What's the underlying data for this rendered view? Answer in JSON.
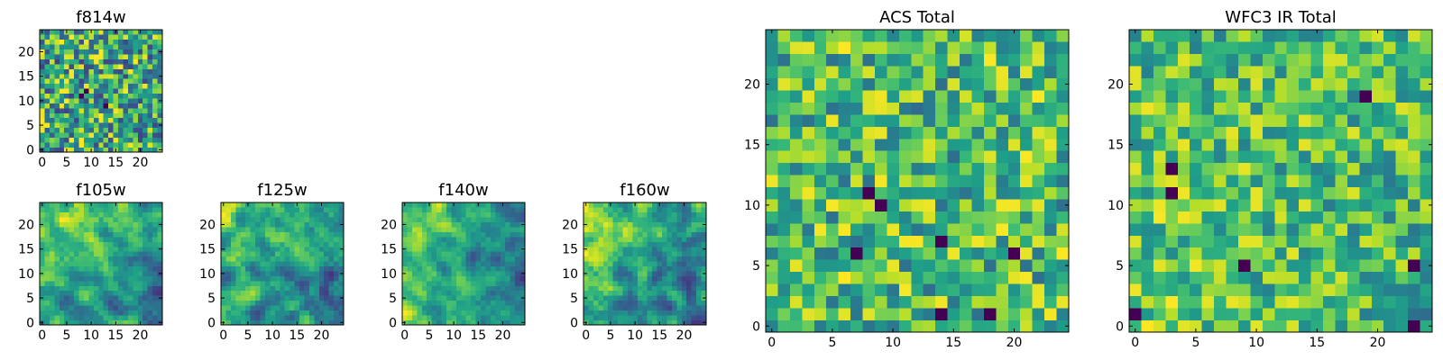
{
  "chart_data": [
    {
      "type": "heatmap",
      "title": "f814w",
      "grid": [
        25,
        25
      ],
      "xlim": [
        -0.5,
        24.5
      ],
      "ylim": [
        -0.5,
        24.5
      ],
      "xticks": [
        0,
        5,
        10,
        15,
        20
      ],
      "yticks": [
        0,
        5,
        10,
        15,
        20
      ],
      "colormap": "viridis",
      "texture": "fine noise",
      "seed": 814,
      "bias": {
        "dark_spots": [
          [
            8,
            11
          ],
          [
            9,
            12
          ],
          [
            13,
            9
          ]
        ]
      }
    },
    {
      "type": "heatmap",
      "title": "f105w",
      "grid": [
        25,
        25
      ],
      "xlim": [
        -0.5,
        24.5
      ],
      "ylim": [
        -0.5,
        24.5
      ],
      "xticks": [
        0,
        5,
        10,
        15,
        20
      ],
      "yticks": [
        0,
        5,
        10,
        15,
        20
      ],
      "colormap": "viridis",
      "texture": "smooth, bright upper-left",
      "seed": 105
    },
    {
      "type": "heatmap",
      "title": "f125w",
      "grid": [
        25,
        25
      ],
      "xlim": [
        -0.5,
        24.5
      ],
      "ylim": [
        -0.5,
        24.5
      ],
      "xticks": [
        0,
        5,
        10,
        15,
        20
      ],
      "yticks": [
        0,
        5,
        10,
        15,
        20
      ],
      "colormap": "viridis",
      "texture": "smooth, bright upper-left",
      "seed": 125
    },
    {
      "type": "heatmap",
      "title": "f140w",
      "grid": [
        25,
        25
      ],
      "xlim": [
        -0.5,
        24.5
      ],
      "ylim": [
        -0.5,
        24.5
      ],
      "xticks": [
        0,
        5,
        10,
        15,
        20
      ],
      "yticks": [
        0,
        5,
        10,
        15,
        20
      ],
      "colormap": "viridis",
      "texture": "smooth, bright left",
      "seed": 140
    },
    {
      "type": "heatmap",
      "title": "f160w",
      "grid": [
        25,
        25
      ],
      "xlim": [
        -0.5,
        24.5
      ],
      "ylim": [
        -0.5,
        24.5
      ],
      "xticks": [
        0,
        5,
        10,
        15,
        20
      ],
      "yticks": [
        0,
        5,
        10,
        15,
        20
      ],
      "colormap": "viridis",
      "texture": "smooth, bright upper-left",
      "seed": 160
    },
    {
      "type": "heatmap",
      "title": "ACS Total",
      "grid": [
        25,
        25
      ],
      "xlim": [
        -0.5,
        24.5
      ],
      "ylim": [
        -0.5,
        24.5
      ],
      "xticks": [
        0,
        5,
        10,
        15,
        20
      ],
      "yticks": [
        0,
        5,
        10,
        15,
        20
      ],
      "colormap": "viridis",
      "texture": "blocky noise",
      "seed": 2001,
      "bias": {
        "dark_spots": [
          [
            8,
            11
          ],
          [
            9,
            10
          ],
          [
            20,
            6
          ],
          [
            14,
            1
          ],
          [
            18,
            1
          ],
          [
            14,
            7
          ],
          [
            7,
            6
          ]
        ]
      }
    },
    {
      "type": "heatmap",
      "title": "WFC3 IR Total",
      "grid": [
        25,
        25
      ],
      "xlim": [
        -0.5,
        24.5
      ],
      "ylim": [
        -0.5,
        24.5
      ],
      "xticks": [
        0,
        5,
        10,
        15,
        20
      ],
      "yticks": [
        0,
        5,
        10,
        15,
        20
      ],
      "colormap": "viridis",
      "texture": "blocky noise, bright lower-left",
      "seed": 2002,
      "bias": {
        "dark_spots": [
          [
            3,
            13
          ],
          [
            3,
            11
          ],
          [
            9,
            5
          ],
          [
            19,
            19
          ],
          [
            23,
            5
          ],
          [
            23,
            0
          ],
          [
            0,
            1
          ]
        ]
      }
    }
  ]
}
